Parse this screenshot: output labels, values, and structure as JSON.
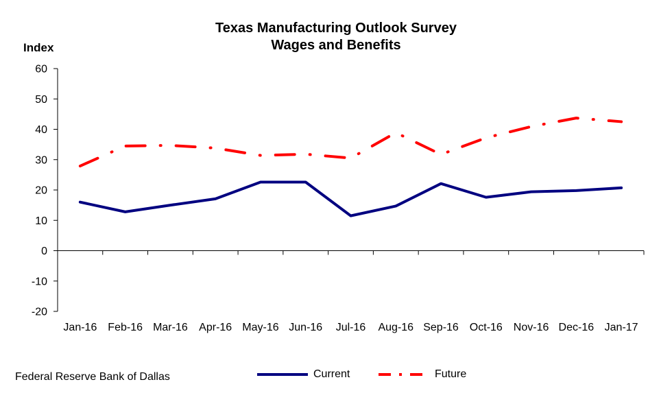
{
  "chart_data": {
    "type": "line",
    "title_line1": "Texas Manufacturing Outlook Survey",
    "title_line2": "Wages and Benefits",
    "ylabel": "Index",
    "xlabel": "",
    "ylim": [
      -20,
      60
    ],
    "yticks": [
      60,
      50,
      40,
      30,
      20,
      10,
      0,
      -10,
      -20
    ],
    "categories": [
      "Jan-16",
      "Feb-16",
      "Mar-16",
      "Apr-16",
      "May-16",
      "Jun-16",
      "Jul-16",
      "Aug-16",
      "Sep-16",
      "Oct-16",
      "Nov-16",
      "Dec-16",
      "Jan-17"
    ],
    "series": [
      {
        "name": "Current",
        "color": "#000080",
        "style": "solid",
        "values": [
          16.0,
          12.8,
          15.0,
          17.1,
          22.6,
          22.6,
          11.5,
          14.7,
          22.1,
          17.6,
          19.4,
          19.8,
          20.7
        ]
      },
      {
        "name": "Future",
        "color": "#ff0000",
        "style": "dash-dot",
        "values": [
          27.9,
          34.5,
          34.7,
          33.8,
          31.4,
          31.8,
          30.5,
          38.9,
          31.7,
          37.2,
          40.9,
          43.7,
          42.5
        ]
      }
    ],
    "grid": false,
    "legend_position": "bottom-center"
  },
  "footer": {
    "source": "Federal Reserve Bank of Dallas"
  }
}
